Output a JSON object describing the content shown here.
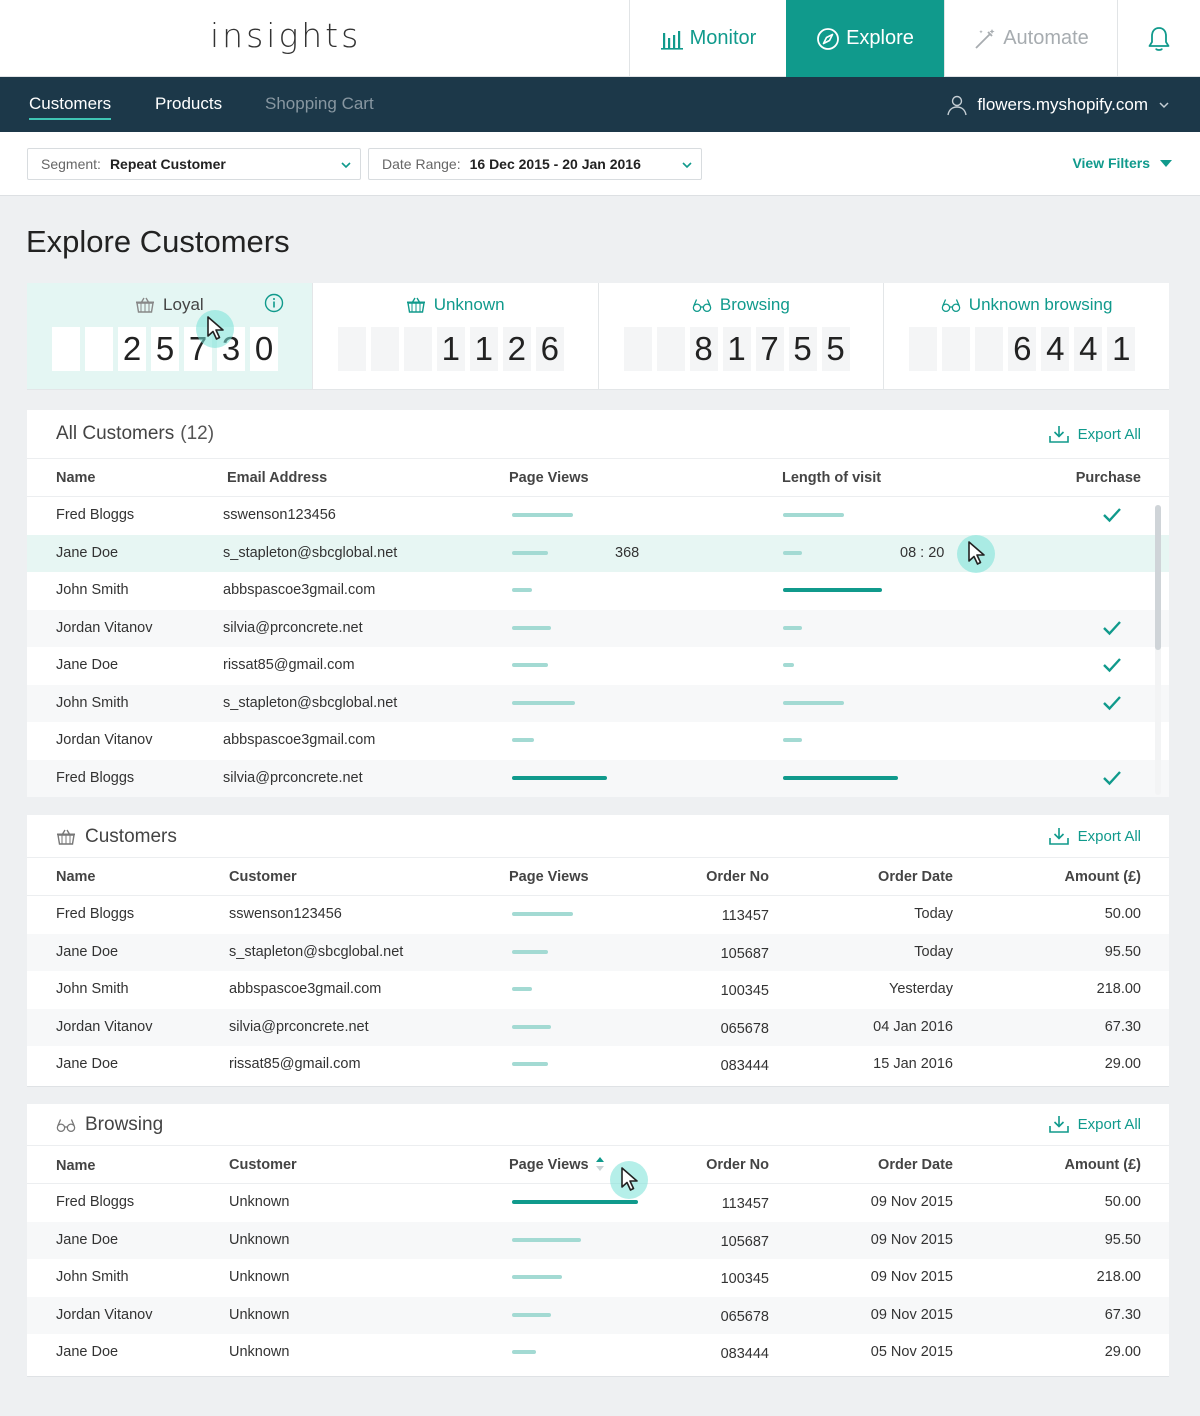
{
  "app": {
    "logo": "insights"
  },
  "topnav": {
    "monitor": "Monitor",
    "explore": "Explore",
    "automate": "Automate"
  },
  "subnav": {
    "tabs": [
      "Customers",
      "Products",
      "Shopping Cart"
    ],
    "store": "flowers.myshopify.com"
  },
  "filters": {
    "segment_label": "Segment:",
    "segment_value": "Repeat Customer",
    "date_label": "Date Range:",
    "date_value": "16 Dec 2015 - 20 Jan 2016",
    "view_filters": "View Filters"
  },
  "page_title": "Explore Customers",
  "stats": [
    {
      "label": "Loyal",
      "digits": [
        "",
        "",
        "2",
        "5",
        "7",
        "3",
        "0"
      ]
    },
    {
      "label": "Unknown",
      "digits": [
        "",
        "",
        "",
        "1",
        "1",
        "2",
        "6"
      ]
    },
    {
      "label": "Browsing",
      "digits": [
        "",
        "",
        "8",
        "1",
        "7",
        "5",
        "5"
      ]
    },
    {
      "label": "Unknown browsing",
      "digits": [
        "",
        "",
        "",
        "6",
        "4",
        "4",
        "1"
      ]
    }
  ],
  "all_customers": {
    "title": "All Customers",
    "count": "(12)",
    "export": "Export All",
    "columns": [
      "Name",
      "Email Address",
      "Page Views",
      "Length of visit",
      "Purchase"
    ],
    "rows": [
      {
        "name": "Fred Bloggs",
        "email": "sswenson123456",
        "views": 0.45,
        "length": 0.45,
        "views_text": "",
        "length_text": "",
        "purchase": true
      },
      {
        "name": "Jane Doe",
        "email": "s_stapleton@sbcglobal.net",
        "views": 0.27,
        "length": 0.14,
        "views_text": "368",
        "length_text": "08 : 20",
        "purchase": false
      },
      {
        "name": "John Smith",
        "email": "abbspascoe3gmail.com",
        "views": 0.15,
        "length": 0.73,
        "views_text": "",
        "length_text": "",
        "purchase": false
      },
      {
        "name": "Jordan Vitanov",
        "email": "silvia@prconcrete.net",
        "views": 0.29,
        "length": 0.14,
        "views_text": "",
        "length_text": "",
        "purchase": true
      },
      {
        "name": "Jane Doe",
        "email": "rissat85@gmail.com",
        "views": 0.27,
        "length": 0.08,
        "views_text": "",
        "length_text": "",
        "purchase": true
      },
      {
        "name": "John Smith",
        "email": "s_stapleton@sbcglobal.net",
        "views": 0.47,
        "length": 0.45,
        "views_text": "",
        "length_text": "",
        "purchase": true
      },
      {
        "name": "Jordan Vitanov",
        "email": "abbspascoe3gmail.com",
        "views": 0.16,
        "length": 0.14,
        "views_text": "",
        "length_text": "",
        "purchase": false
      },
      {
        "name": "Fred Bloggs",
        "email": "silvia@prconcrete.net",
        "views": 0.7,
        "length": 0.85,
        "views_text": "",
        "length_text": "",
        "purchase": true
      }
    ]
  },
  "customers": {
    "title": "Customers",
    "export": "Export All",
    "columns": [
      "Name",
      "Customer",
      "Page Views",
      "Order No",
      "Order Date",
      "Amount (£)"
    ],
    "rows": [
      {
        "name": "Fred Bloggs",
        "customer": "sswenson123456",
        "views": 0.45,
        "order": "113457",
        "date": "Today",
        "amount": "50.00"
      },
      {
        "name": "Jane Doe",
        "customer": "s_stapleton@sbcglobal.net",
        "views": 0.27,
        "order": "105687",
        "date": "Today",
        "amount": "95.50"
      },
      {
        "name": "John Smith",
        "customer": "abbspascoe3gmail.com",
        "views": 0.15,
        "order": "100345",
        "date": "Yesterday",
        "amount": "218.00"
      },
      {
        "name": "Jordan Vitanov",
        "customer": "silvia@prconcrete.net",
        "views": 0.29,
        "order": "065678",
        "date": "04 Jan 2016",
        "amount": "67.30"
      },
      {
        "name": "Jane Doe",
        "customer": "rissat85@gmail.com",
        "views": 0.27,
        "order": "083444",
        "date": "15 Jan 2016",
        "amount": "29.00"
      }
    ]
  },
  "browsing": {
    "title": "Browsing",
    "export": "Export All",
    "columns": [
      "Name",
      "Customer",
      "Page Views",
      "Order No",
      "Order Date",
      "Amount (£)"
    ],
    "rows": [
      {
        "name": "Fred Bloggs",
        "customer": "Unknown",
        "views": 0.93,
        "order": "113457",
        "date": "09 Nov 2015",
        "amount": "50.00"
      },
      {
        "name": "Jane Doe",
        "customer": "Unknown",
        "views": 0.51,
        "order": "105687",
        "date": "09 Nov 2015",
        "amount": "95.50"
      },
      {
        "name": "John Smith",
        "customer": "Unknown",
        "views": 0.37,
        "order": "100345",
        "date": "09 Nov 2015",
        "amount": "218.00"
      },
      {
        "name": "Jordan Vitanov",
        "customer": "Unknown",
        "views": 0.29,
        "order": "065678",
        "date": "09 Nov 2015",
        "amount": "67.30"
      },
      {
        "name": "Jane Doe",
        "customer": "Unknown",
        "views": 0.18,
        "order": "083444",
        "date": "05 Nov 2015",
        "amount": "29.00"
      }
    ]
  },
  "colors": {
    "accent": "#109a8c",
    "nav_dark": "#1c3849",
    "bar_light": "#a3dad3",
    "highlight": "#e7f6f3"
  }
}
